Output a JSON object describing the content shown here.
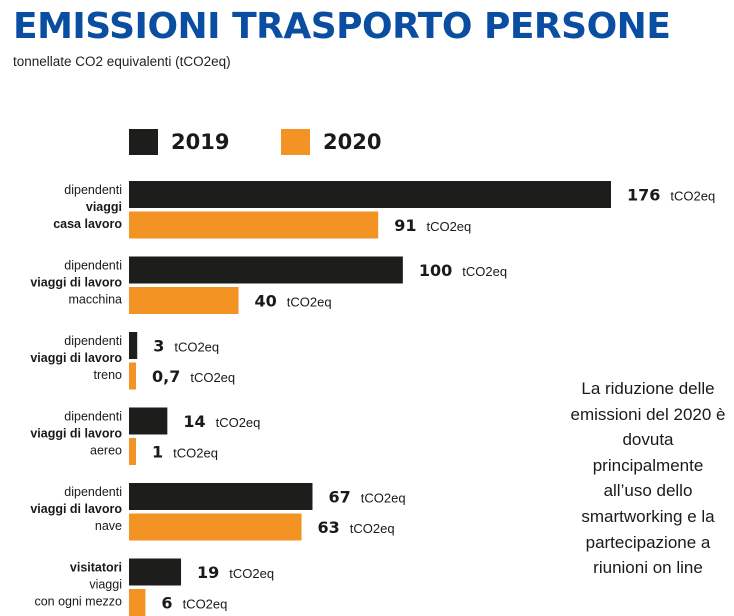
{
  "title": "EMISSIONI TRASPORTO PERSONE",
  "subtitle": "tonnellate CO2 equivalenti (tCO2eq)",
  "legend": [
    {
      "label": "2019",
      "color": "#1d1d1b"
    },
    {
      "label": "2020",
      "color": "#f39323"
    }
  ],
  "note": "La riduzione delle emissioni del 2020 è dovuta principalmente all’uso dello smartworking e la partecipazione a riunioni on line",
  "chart_data": {
    "type": "bar",
    "orientation": "horizontal",
    "unit": "tCO2eq",
    "categories": [
      {
        "lines": [
          {
            "text": "dipendenti",
            "bold": false
          },
          {
            "text": "viaggi",
            "bold": true
          },
          {
            "text": "casa lavoro",
            "bold": true
          }
        ]
      },
      {
        "lines": [
          {
            "text": "dipendenti",
            "bold": false
          },
          {
            "text": "viaggi di lavoro",
            "bold": true
          },
          {
            "text": "macchina",
            "bold": false
          }
        ]
      },
      {
        "lines": [
          {
            "text": "dipendenti",
            "bold": false
          },
          {
            "text": "viaggi di lavoro",
            "bold": true
          },
          {
            "text": "treno",
            "bold": false
          }
        ]
      },
      {
        "lines": [
          {
            "text": "dipendenti",
            "bold": false
          },
          {
            "text": "viaggi di lavoro",
            "bold": true
          },
          {
            "text": "aereo",
            "bold": false
          }
        ]
      },
      {
        "lines": [
          {
            "text": "dipendenti",
            "bold": false
          },
          {
            "text": "viaggi di lavoro",
            "bold": true
          },
          {
            "text": "nave",
            "bold": false
          }
        ]
      },
      {
        "lines": [
          {
            "text": "visitatori",
            "bold": true
          },
          {
            "text": "viaggi",
            "bold": false
          },
          {
            "text": "con ogni mezzo",
            "bold": false
          }
        ]
      }
    ],
    "series": [
      {
        "name": "2019",
        "color": "#1d1d1b",
        "values": [
          176,
          100,
          3,
          14,
          67,
          19
        ],
        "labels": [
          "176",
          "100",
          "3",
          "14",
          "67",
          "19"
        ]
      },
      {
        "name": "2020",
        "color": "#f39323",
        "values": [
          91,
          40,
          0.7,
          1,
          63,
          6
        ],
        "labels": [
          "91",
          "40",
          "0,7",
          "1",
          "63",
          "6"
        ]
      }
    ]
  }
}
